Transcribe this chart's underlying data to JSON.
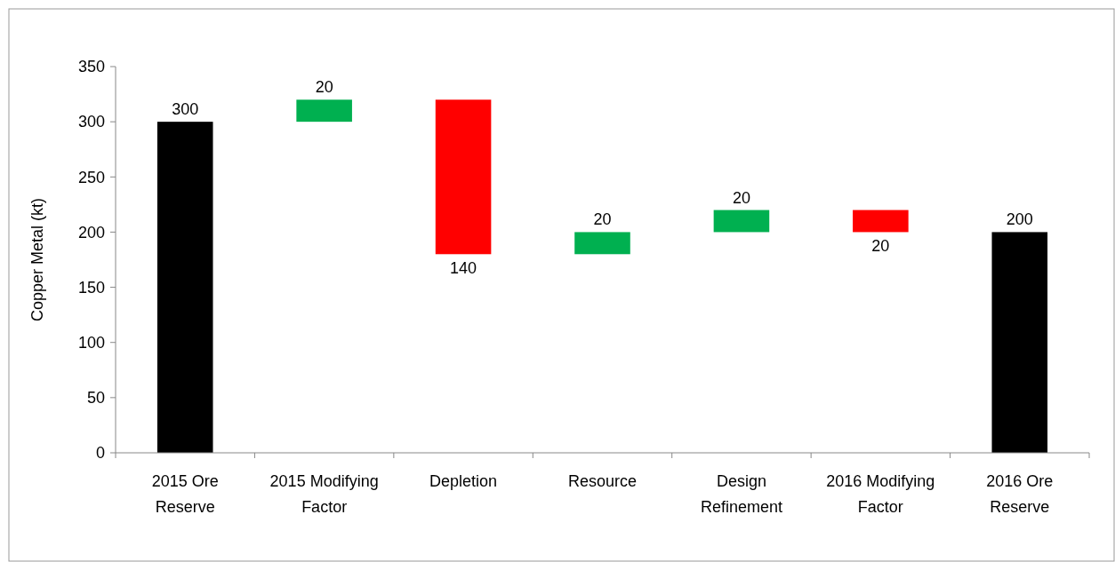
{
  "chart_data": {
    "type": "bar",
    "ylabel": "Copper Metal (kt)",
    "categories": [
      "2015 Ore Reserve",
      "2015 Modifying Factor",
      "Depletion",
      "Resource",
      "Design Refinement",
      "2016 Modifying Factor",
      "2016 Ore Reserve"
    ],
    "values": [
      300,
      20,
      -140,
      20,
      20,
      -20,
      200
    ],
    "base": [
      0,
      300,
      320,
      180,
      200,
      220,
      0
    ],
    "colors": [
      "#000000",
      "#00b050",
      "#ff0000",
      "#00b050",
      "#00b050",
      "#ff0000",
      "#000000"
    ],
    "value_labels": [
      "300",
      "20",
      "140",
      "20",
      "20",
      "20",
      "200"
    ],
    "ylim": [
      0,
      350
    ],
    "yticks": [
      0,
      50,
      100,
      150,
      200,
      250,
      300,
      350
    ],
    "grid": false
  }
}
